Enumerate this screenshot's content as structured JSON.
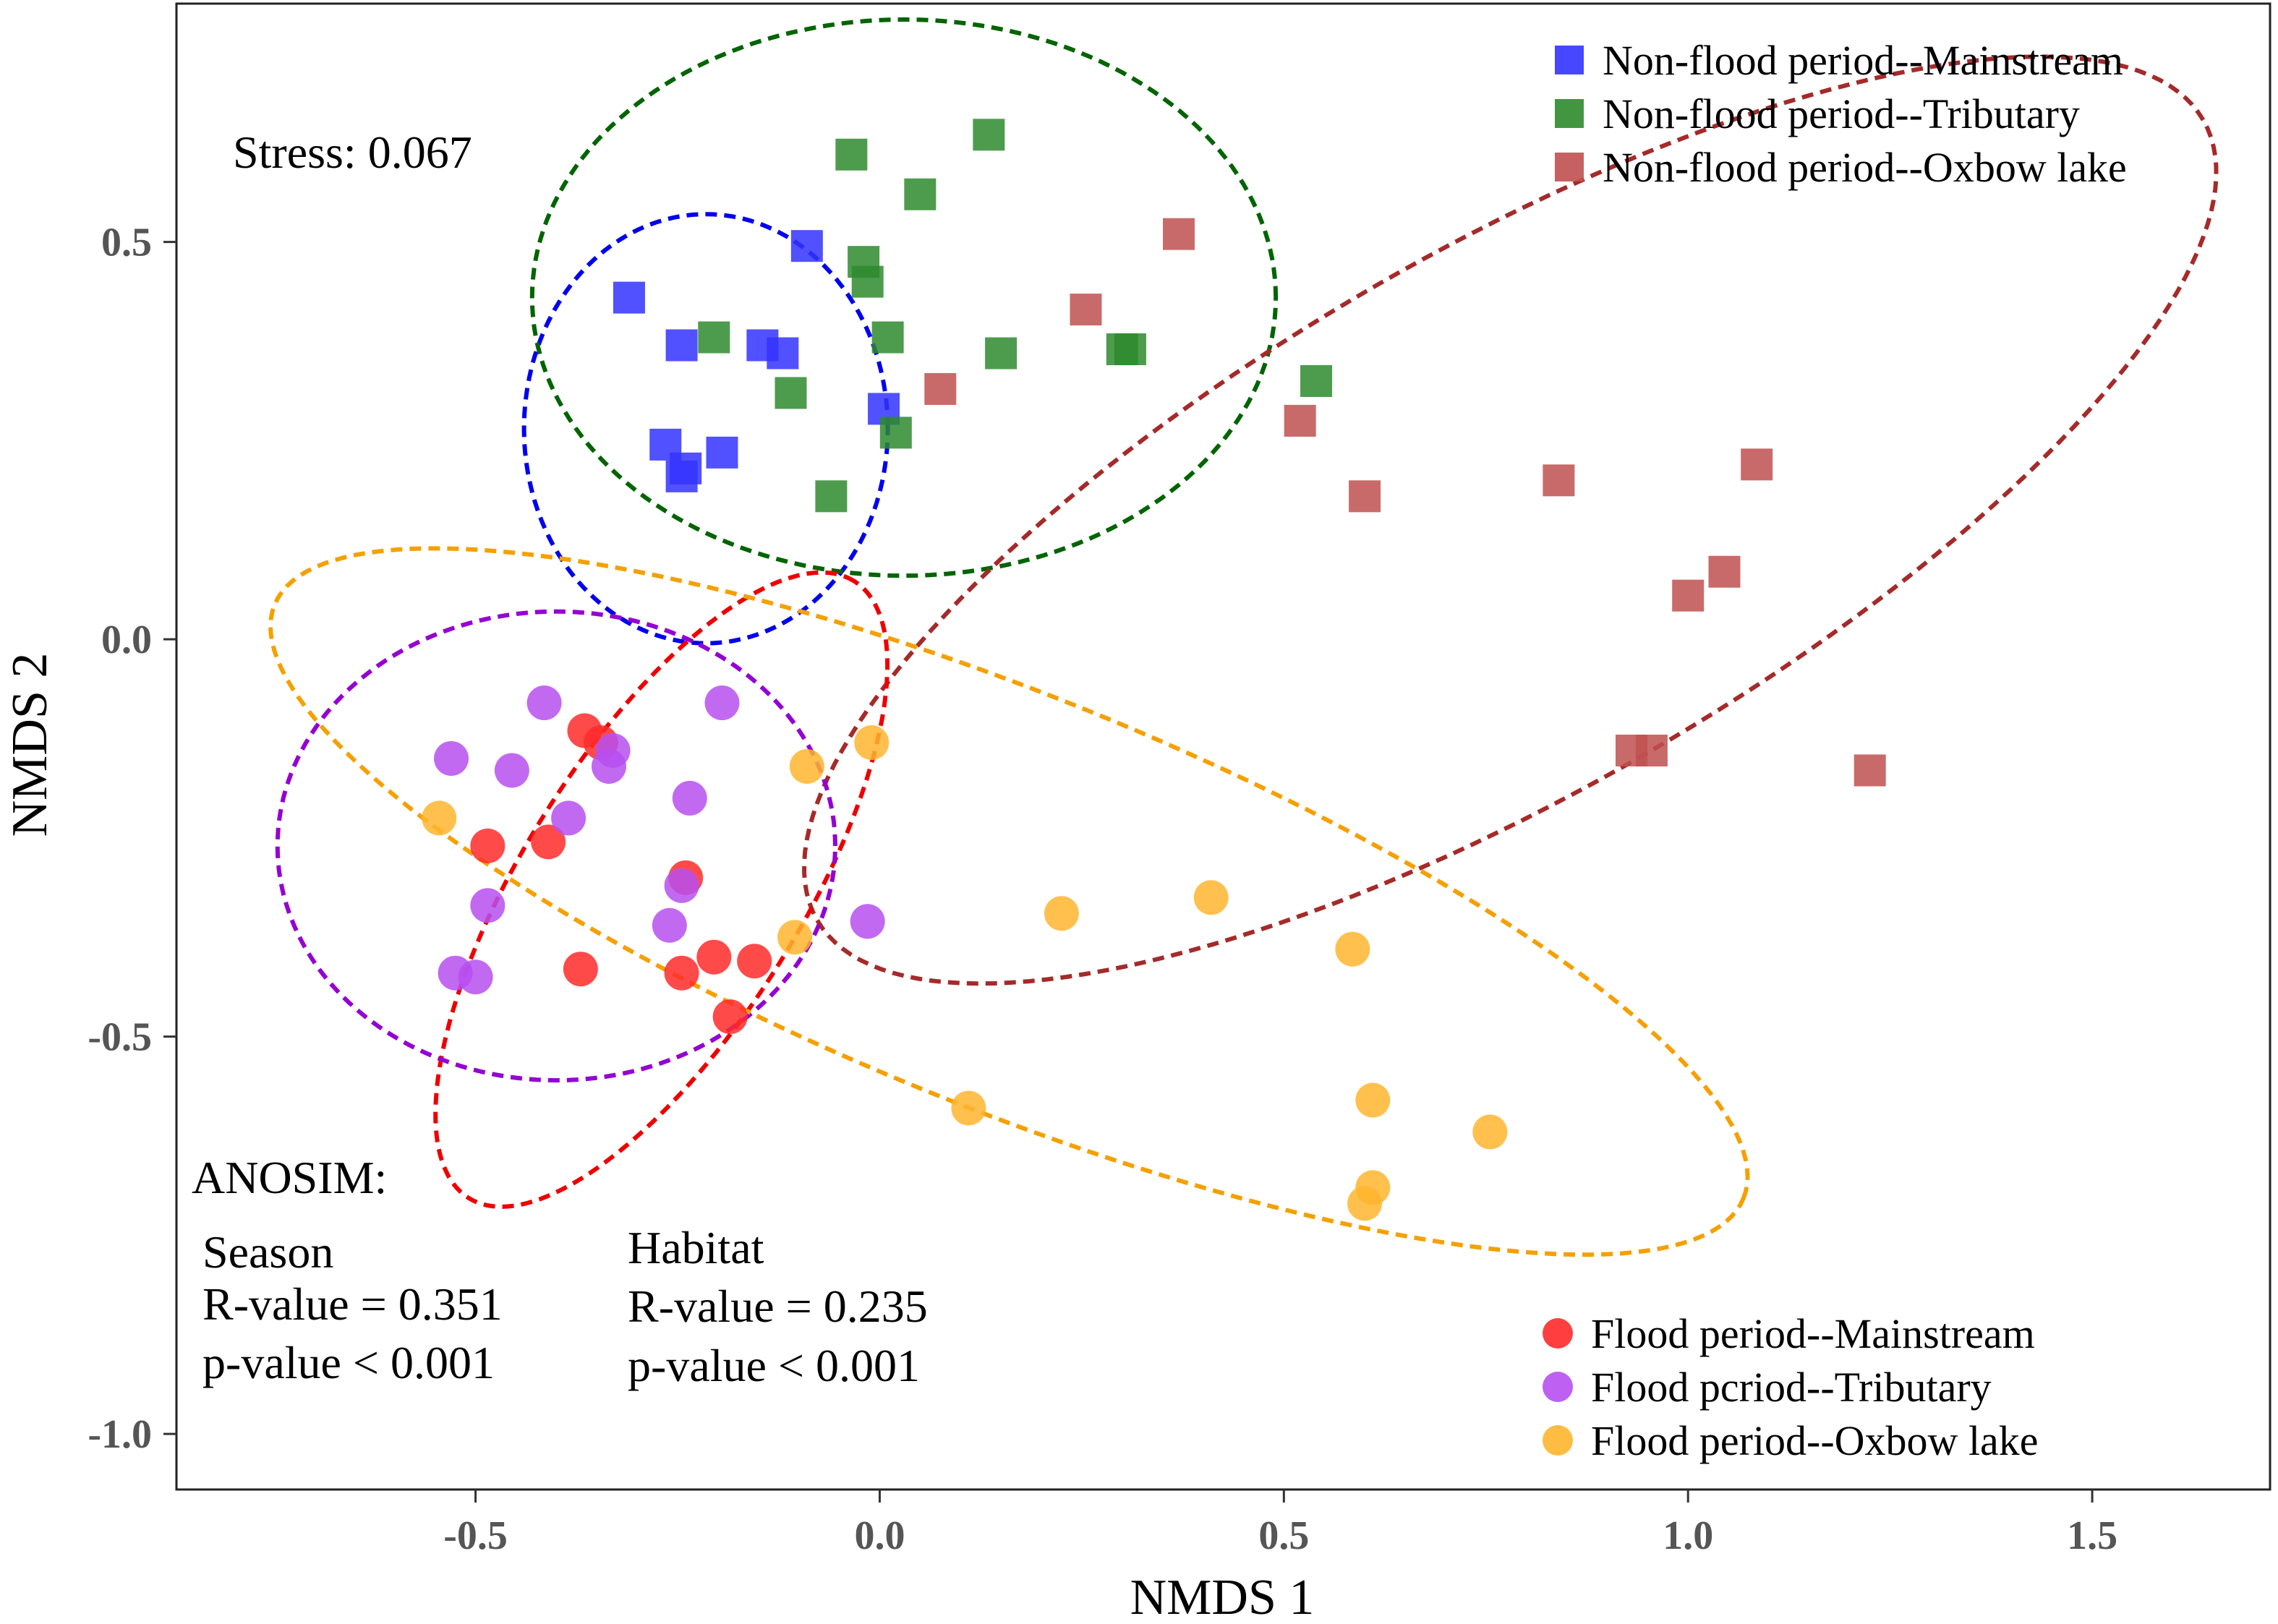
{
  "chart_data": {
    "type": "scatter",
    "title": "",
    "xlabel": "NMDS 1",
    "ylabel": "NMDS 2",
    "xlim": [
      -0.87,
      1.72
    ],
    "ylim": [
      -1.07,
      0.8
    ],
    "xticks": [
      -0.5,
      0.0,
      0.5,
      1.0,
      1.5
    ],
    "xtick_labels": [
      "-0.5",
      "0.0",
      "0.5",
      "1.0",
      "1.5"
    ],
    "yticks": [
      0.5,
      0.0,
      -0.5,
      -1.0
    ],
    "ytick_labels": [
      "0.5",
      "0.0",
      "-0.5",
      "-1.0"
    ],
    "grid": false,
    "stress_text": "Stress: 0.067",
    "anosim": {
      "heading": "ANOSIM:",
      "season": {
        "label": "Season",
        "r_text": "R-value = 0.351",
        "p_text": "p-value < 0.001"
      },
      "habitat": {
        "label": "Habitat",
        "r_text": "R-value = 0.235",
        "p_text": "p-value < 0.001"
      }
    },
    "legend_top": {
      "position": "top-right",
      "entries": [
        {
          "series": 0,
          "label": "Non-flood period--Mainstream"
        },
        {
          "series": 1,
          "label": "Non-flood period--Tributary"
        },
        {
          "series": 2,
          "label": "Non-flood period--Oxbow lake"
        }
      ]
    },
    "legend_bottom": {
      "position": "bottom-right",
      "entries": [
        {
          "series": 3,
          "label": "Flood period--Mainstream"
        },
        {
          "series": 4,
          "label": "Flood pcriod--Tributary"
        },
        {
          "series": 5,
          "label": "Flood period--Oxbow lake"
        }
      ]
    },
    "series": [
      {
        "name": "Non-flood period--Mainstream",
        "marker": "square",
        "color": "#3333ff",
        "ellipse_color": "#0000ee",
        "ellipse": {
          "cx": -0.215,
          "cy": 0.265,
          "rx": 0.225,
          "ry": 0.27,
          "angle": 0
        },
        "points": [
          [
            -0.31,
            0.43
          ],
          [
            -0.245,
            0.37
          ],
          [
            -0.145,
            0.37
          ],
          [
            -0.12,
            0.36
          ],
          [
            -0.09,
            0.495
          ],
          [
            -0.265,
            0.245
          ],
          [
            -0.24,
            0.215
          ],
          [
            -0.195,
            0.235
          ],
          [
            -0.245,
            0.205
          ],
          [
            0.005,
            0.29
          ]
        ]
      },
      {
        "name": "Non-flood period--Tributary",
        "marker": "square",
        "color": "#2e8b2e",
        "ellipse_color": "#006400",
        "ellipse": {
          "cx": 0.03,
          "cy": 0.43,
          "rx": 0.46,
          "ry": 0.35,
          "angle": 0
        },
        "points": [
          [
            -0.035,
            0.61
          ],
          [
            0.135,
            0.635
          ],
          [
            0.05,
            0.56
          ],
          [
            -0.02,
            0.475
          ],
          [
            -0.015,
            0.45
          ],
          [
            -0.205,
            0.38
          ],
          [
            0.01,
            0.38
          ],
          [
            0.15,
            0.36
          ],
          [
            0.3,
            0.365
          ],
          [
            0.31,
            0.365
          ],
          [
            -0.11,
            0.31
          ],
          [
            0.02,
            0.26
          ],
          [
            0.54,
            0.325
          ],
          [
            -0.06,
            0.18
          ]
        ]
      },
      {
        "name": "Non-flood period--Oxbow lake",
        "marker": "square",
        "color": "#c05050",
        "ellipse_color": "#a52a2a",
        "ellipse": {
          "cx": 0.78,
          "cy": 0.15,
          "rx": 0.99,
          "ry": 0.34,
          "angle": 30
        },
        "points": [
          [
            0.37,
            0.51
          ],
          [
            0.255,
            0.415
          ],
          [
            0.075,
            0.315
          ],
          [
            0.52,
            0.275
          ],
          [
            0.6,
            0.18
          ],
          [
            0.84,
            0.2
          ],
          [
            1.085,
            0.22
          ],
          [
            1.045,
            0.085
          ],
          [
            1.0,
            0.055
          ],
          [
            0.93,
            -0.14
          ],
          [
            0.955,
            -0.14
          ],
          [
            1.225,
            -0.165
          ]
        ]
      },
      {
        "name": "Flood period--Mainstream",
        "marker": "circle",
        "color": "#ff2a2a",
        "ellipse_color": "#ee0000",
        "ellipse": {
          "cx": -0.27,
          "cy": -0.315,
          "rx": 0.45,
          "ry": 0.175,
          "angle": 58
        },
        "points": [
          [
            -0.365,
            -0.115
          ],
          [
            -0.345,
            -0.13
          ],
          [
            -0.485,
            -0.26
          ],
          [
            -0.41,
            -0.255
          ],
          [
            -0.24,
            -0.3
          ],
          [
            -0.37,
            -0.415
          ],
          [
            -0.245,
            -0.42
          ],
          [
            -0.205,
            -0.4
          ],
          [
            -0.155,
            -0.405
          ],
          [
            -0.185,
            -0.475
          ]
        ]
      },
      {
        "name": "Flood pcriod--Tributary",
        "marker": "circle",
        "color": "#b74ff0",
        "ellipse_color": "#9400d3",
        "ellipse": {
          "cx": -0.4,
          "cy": -0.26,
          "rx": 0.345,
          "ry": 0.295,
          "angle": 0
        },
        "points": [
          [
            -0.415,
            -0.08
          ],
          [
            -0.195,
            -0.08
          ],
          [
            -0.53,
            -0.15
          ],
          [
            -0.33,
            -0.14
          ],
          [
            -0.335,
            -0.16
          ],
          [
            -0.455,
            -0.165
          ],
          [
            -0.235,
            -0.2
          ],
          [
            -0.385,
            -0.225
          ],
          [
            -0.245,
            -0.31
          ],
          [
            -0.485,
            -0.335
          ],
          [
            -0.26,
            -0.36
          ],
          [
            -0.015,
            -0.355
          ],
          [
            -0.525,
            -0.42
          ],
          [
            -0.5,
            -0.425
          ]
        ]
      },
      {
        "name": "Flood period--Oxbow lake",
        "marker": "circle",
        "color": "#ffb52e",
        "ellipse_color": "#f5a000",
        "ellipse": {
          "cx": 0.16,
          "cy": -0.33,
          "rx": 0.98,
          "ry": 0.26,
          "angle": -22
        },
        "points": [
          [
            -0.01,
            -0.13
          ],
          [
            -0.09,
            -0.16
          ],
          [
            -0.545,
            -0.225
          ],
          [
            -0.105,
            -0.375
          ],
          [
            0.225,
            -0.345
          ],
          [
            0.41,
            -0.325
          ],
          [
            0.585,
            -0.39
          ],
          [
            0.11,
            -0.59
          ],
          [
            0.61,
            -0.58
          ],
          [
            0.755,
            -0.62
          ],
          [
            0.61,
            -0.69
          ],
          [
            0.6,
            -0.71
          ]
        ]
      }
    ]
  }
}
